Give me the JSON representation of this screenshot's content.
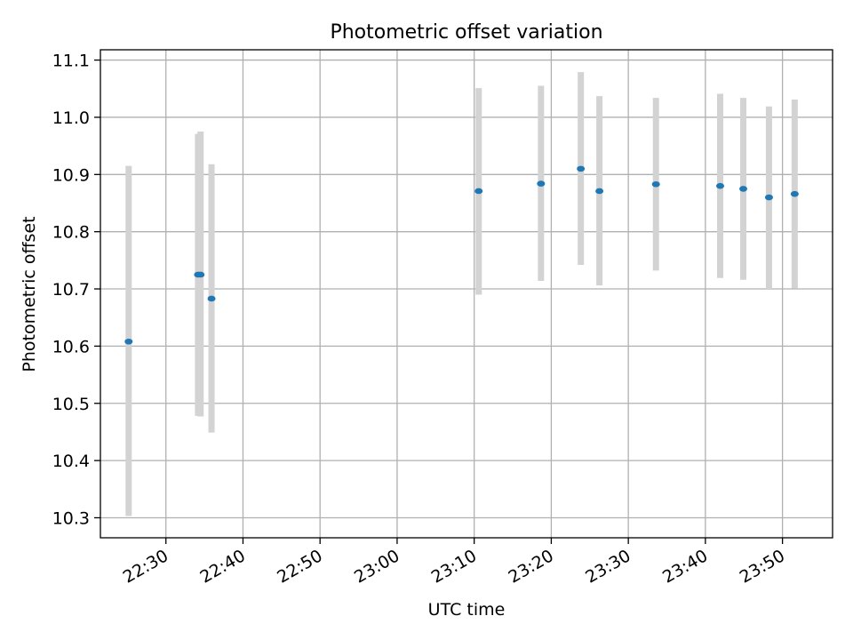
{
  "chart_data": {
    "type": "scatter",
    "title": "Photometric offset variation",
    "xlabel": "UTC time",
    "ylabel": "Photometric offset",
    "xlim": [
      "22:21:30",
      "23:56:30"
    ],
    "ylim": [
      10.265,
      11.118
    ],
    "x_ticks": [
      "22:30",
      "22:40",
      "22:50",
      "23:00",
      "23:10",
      "23:20",
      "23:30",
      "23:40",
      "23:50"
    ],
    "y_ticks": [
      "10.3",
      "10.4",
      "10.5",
      "10.6",
      "10.7",
      "10.8",
      "10.9",
      "11.0",
      "11.1"
    ],
    "grid": true,
    "x_tick_rotation_deg": 30,
    "marker_color": "#1f77b4",
    "errorbar_color": "#d3d3d3",
    "points": [
      {
        "time": "22:25:10",
        "value": 10.608,
        "lower": 10.303,
        "upper": 10.915
      },
      {
        "time": "22:34:10",
        "value": 10.725,
        "lower": 10.478,
        "upper": 10.971
      },
      {
        "time": "22:34:30",
        "value": 10.725,
        "lower": 10.477,
        "upper": 10.975
      },
      {
        "time": "22:35:55",
        "value": 10.683,
        "lower": 10.449,
        "upper": 10.918
      },
      {
        "time": "23:10:35",
        "value": 10.871,
        "lower": 10.69,
        "upper": 11.051
      },
      {
        "time": "23:18:40",
        "value": 10.884,
        "lower": 10.714,
        "upper": 11.055
      },
      {
        "time": "23:23:50",
        "value": 10.91,
        "lower": 10.742,
        "upper": 11.079
      },
      {
        "time": "23:26:15",
        "value": 10.871,
        "lower": 10.706,
        "upper": 11.037
      },
      {
        "time": "23:33:35",
        "value": 10.883,
        "lower": 10.732,
        "upper": 11.034
      },
      {
        "time": "23:41:55",
        "value": 10.88,
        "lower": 10.719,
        "upper": 11.041
      },
      {
        "time": "23:44:55",
        "value": 10.875,
        "lower": 10.716,
        "upper": 11.034
      },
      {
        "time": "23:48:15",
        "value": 10.86,
        "lower": 10.7,
        "upper": 11.019
      },
      {
        "time": "23:51:35",
        "value": 10.866,
        "lower": 10.701,
        "upper": 11.031
      }
    ]
  }
}
